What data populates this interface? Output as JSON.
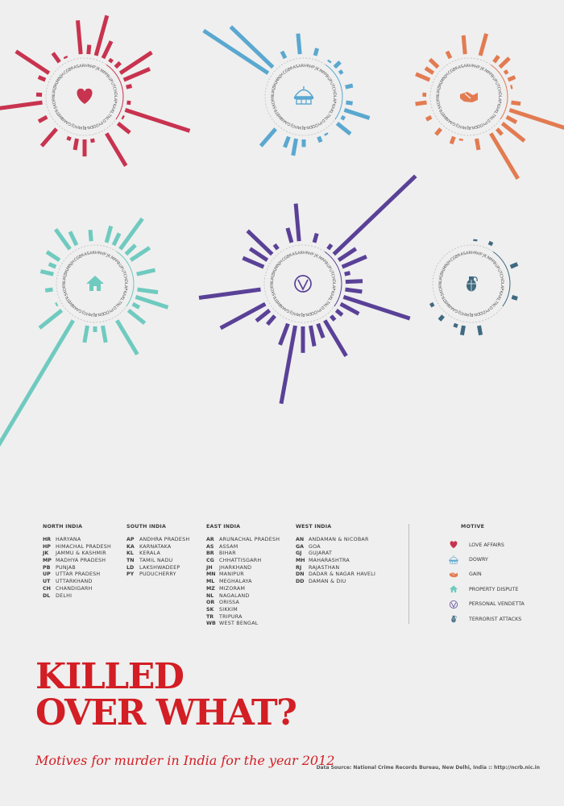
{
  "title_line1": "KILLED",
  "title_line2": "OVER WHAT?",
  "subtitle": "Motives for murder in India for the year 2012",
  "source": "Data Source: National Crime Records Bureau, New Delhi, India :: http://ncrb.nic.in",
  "regions": [
    {
      "heading": "NORTH INDIA",
      "states": [
        {
          "abbr": "HR",
          "name": "HARYANA"
        },
        {
          "abbr": "HP",
          "name": "HIMACHAL PRADESH"
        },
        {
          "abbr": "JK",
          "name": "JAMMU & KASHMIR"
        },
        {
          "abbr": "MP",
          "name": "MADHYA PRADESH"
        },
        {
          "abbr": "PB",
          "name": "PUNJAB"
        },
        {
          "abbr": "UP",
          "name": "UTTAR PRADESH"
        },
        {
          "abbr": "UT",
          "name": "UTTARKHAND"
        },
        {
          "abbr": "CH",
          "name": "CHANDIGARH"
        },
        {
          "abbr": "DL",
          "name": "DELHI"
        }
      ]
    },
    {
      "heading": "SOUTH INDIA",
      "states": [
        {
          "abbr": "AP",
          "name": "ANDHRA PRADESH"
        },
        {
          "abbr": "KA",
          "name": "KARNATAKA"
        },
        {
          "abbr": "KL",
          "name": "KERALA"
        },
        {
          "abbr": "TN",
          "name": "TAMIL NADU"
        },
        {
          "abbr": "LD",
          "name": "LAKSHWADEEP"
        },
        {
          "abbr": "PY",
          "name": "PUDUCHERRY"
        }
      ]
    },
    {
      "heading": "EAST INDIA",
      "states": [
        {
          "abbr": "AR",
          "name": "ARUNACHAL PRADESH"
        },
        {
          "abbr": "AS",
          "name": "ASSAM"
        },
        {
          "abbr": "BR",
          "name": "BIHAR"
        },
        {
          "abbr": "CG",
          "name": "CHHATTISGARH"
        },
        {
          "abbr": "JH",
          "name": "JHARKHAND"
        },
        {
          "abbr": "MN",
          "name": "MANIPUR"
        },
        {
          "abbr": "ML",
          "name": "MEGHALAYA"
        },
        {
          "abbr": "MZ",
          "name": "MIZORAM"
        },
        {
          "abbr": "NL",
          "name": "NAGALAND"
        },
        {
          "abbr": "OR",
          "name": "ORISSA"
        },
        {
          "abbr": "SK",
          "name": "SIKKIM"
        },
        {
          "abbr": "TR",
          "name": "TRIPURA"
        },
        {
          "abbr": "WB",
          "name": "WEST BENGAL"
        }
      ]
    },
    {
      "heading": "WEST INDIA",
      "states": [
        {
          "abbr": "AN",
          "name": "ANDAMAN & NICOBAR"
        },
        {
          "abbr": "GA",
          "name": "GOA"
        },
        {
          "abbr": "GJ",
          "name": "GUJARAT"
        },
        {
          "abbr": "MH",
          "name": "MAHARASHTRA"
        },
        {
          "abbr": "RJ",
          "name": "RAJASTHAN"
        },
        {
          "abbr": "DN",
          "name": "DADAR & NAGAR HAVELI"
        },
        {
          "abbr": "DD",
          "name": "DAMAN & DIU"
        }
      ]
    }
  ],
  "motive_heading": "MOTIVE",
  "chart_data": {
    "type": "radial-bar",
    "state_order": [
      "HR",
      "HP",
      "JK",
      "MP",
      "PB",
      "UP",
      "UT",
      "CH",
      "DL",
      "AP",
      "KA",
      "KL",
      "TN",
      "LD",
      "PY",
      "DD",
      "DN",
      "RJ",
      "MH",
      "GJ",
      "GA",
      "AN",
      "WB",
      "TR",
      "SK",
      "OR",
      "NL",
      "MZ",
      "ML",
      "MN",
      "JH",
      "CG",
      "BR",
      "AS",
      "AR"
    ],
    "motives": [
      {
        "name": "LOVE AFFAIRS",
        "color": "#c8334f",
        "icon": "heart-icon",
        "values": [
          10,
          44,
          20,
          4,
          7,
          40,
          30,
          6,
          0,
          4,
          72,
          2,
          16,
          0,
          40,
          0,
          4,
          18,
          12,
          4,
          0,
          24,
          0,
          10,
          0,
          50,
          6,
          0,
          8,
          42,
          0,
          12,
          2,
          0,
          36
        ]
      },
      {
        "name": "DOWRY",
        "color": "#5aa8d0",
        "icon": "dowry-icon",
        "values": [
          0,
          8,
          0,
          2,
          8,
          4,
          0,
          8,
          0,
          7,
          28,
          4,
          18,
          0,
          2,
          6,
          0,
          8,
          18,
          12,
          0,
          24,
          0,
          0,
          0,
          0,
          0,
          0,
          0,
          82,
          62,
          0,
          8,
          0,
          22
        ]
      },
      {
        "name": "GAIN",
        "color": "#e27b51",
        "icon": "handshake-icon",
        "values": [
          0,
          24,
          0,
          8,
          14,
          4,
          8,
          2,
          0,
          10,
          62,
          12,
          30,
          8,
          56,
          0,
          12,
          0,
          2,
          8,
          0,
          8,
          0,
          6,
          0,
          12,
          4,
          0,
          16,
          10,
          12,
          0,
          8,
          0,
          20
        ]
      },
      {
        "name": "PROPERTY DISPUTE",
        "color": "#6fcabf",
        "icon": "house-icon",
        "values": [
          0,
          18,
          14,
          40,
          14,
          24,
          0,
          20,
          0,
          22,
          36,
          8,
          22,
          0,
          42,
          0,
          18,
          6,
          18,
          0,
          202,
          0,
          30,
          2,
          0,
          8,
          0,
          14,
          8,
          16,
          0,
          26,
          16,
          0,
          12
        ]
      },
      {
        "name": "PERSONAL VENDETTA",
        "color": "#5a4197",
        "icon": "vendetta-icon",
        "values": [
          0,
          10,
          0,
          6,
          120,
          22,
          28,
          6,
          18,
          18,
          74,
          22,
          8,
          6,
          44,
          16,
          22,
          28,
          84,
          24,
          0,
          12,
          18,
          54,
          0,
          66,
          0,
          0,
          24,
          22,
          36,
          6,
          0,
          16,
          40
        ]
      },
      {
        "name": "TERRORIST ATTACKS",
        "color": "#3f6a80",
        "icon": "grenade-icon",
        "values": [
          2,
          0,
          4,
          0,
          0,
          0,
          8,
          0,
          0,
          0,
          6,
          0,
          0,
          0,
          0,
          0,
          10,
          0,
          10,
          4,
          0,
          6,
          0,
          4,
          0,
          0,
          0,
          0,
          0,
          0,
          0,
          0,
          0,
          0,
          0
        ]
      }
    ]
  }
}
